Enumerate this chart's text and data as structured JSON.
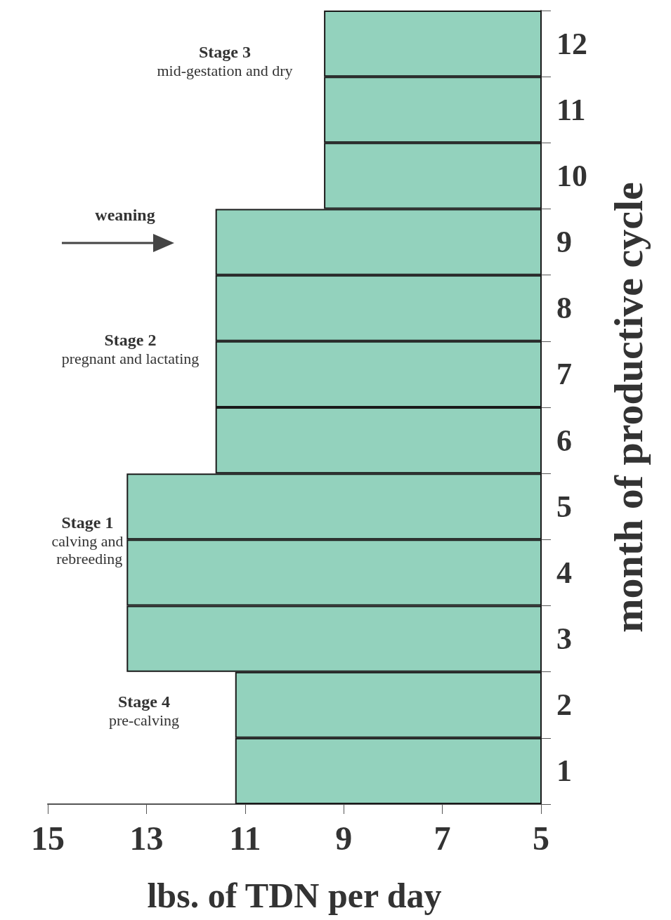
{
  "chart_data": {
    "type": "bar",
    "orientation": "horizontal",
    "xlabel": "lbs. of TDN per day",
    "ylabel": "month of productive cycle",
    "categories": [
      "12",
      "11",
      "10",
      "9",
      "8",
      "7",
      "6",
      "5",
      "4",
      "3",
      "2",
      "1"
    ],
    "values": [
      9.4,
      9.4,
      9.4,
      11.6,
      11.6,
      11.6,
      11.6,
      13.4,
      13.4,
      13.4,
      11.2,
      11.2
    ],
    "color": "#93d2bd",
    "xlim": [
      15,
      5
    ],
    "xticks": [
      15,
      13,
      11,
      9,
      7,
      5
    ],
    "grid": false,
    "annotations": [
      "Stage 4\npre-calving",
      "Stage 1\ncalving and rebreeding",
      "Stage 2\npregnant and lactating",
      "weaning",
      "Stage 3\nmid-gestation and dry"
    ]
  }
}
